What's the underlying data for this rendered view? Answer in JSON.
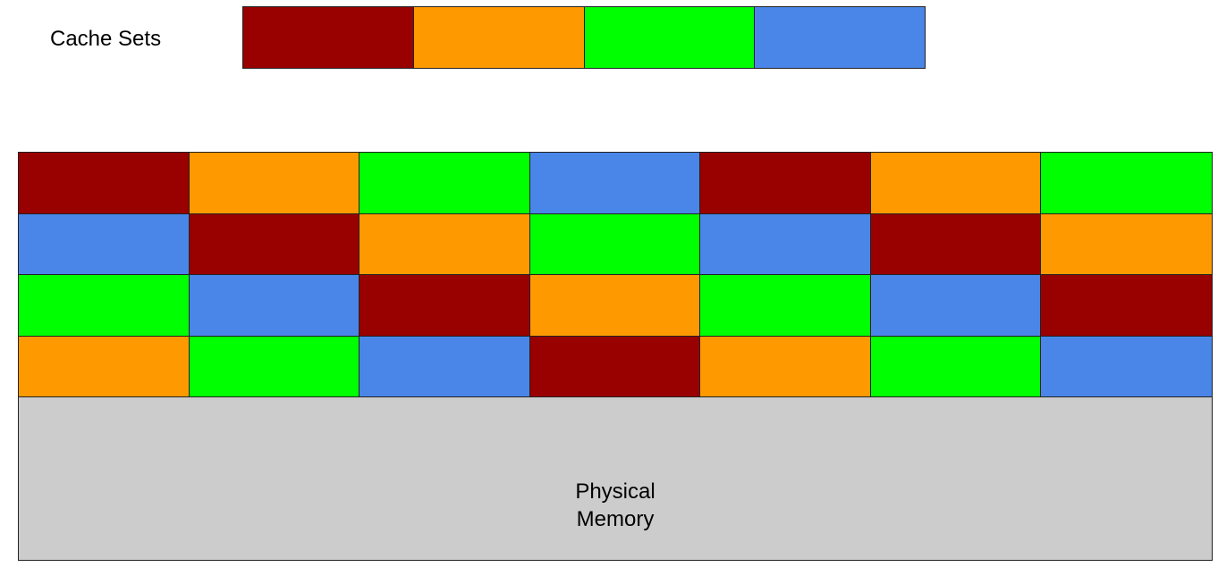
{
  "cache": {
    "label": "Cache Sets",
    "sets": [
      {
        "color": "#990000"
      },
      {
        "color": "#ff9900"
      },
      {
        "color": "#00ff00"
      },
      {
        "color": "#4a86e8"
      }
    ]
  },
  "memory": {
    "label_line1": "Physical",
    "label_line2": "Memory",
    "background": "#cccccc",
    "columns": 7,
    "rows": 4,
    "block_set_order": [
      0,
      1,
      2,
      3,
      0,
      1,
      2,
      3,
      0,
      1,
      2,
      3,
      0,
      1,
      2,
      3,
      0,
      1,
      2,
      3,
      0,
      1,
      2,
      3,
      0,
      1,
      2,
      3
    ]
  }
}
